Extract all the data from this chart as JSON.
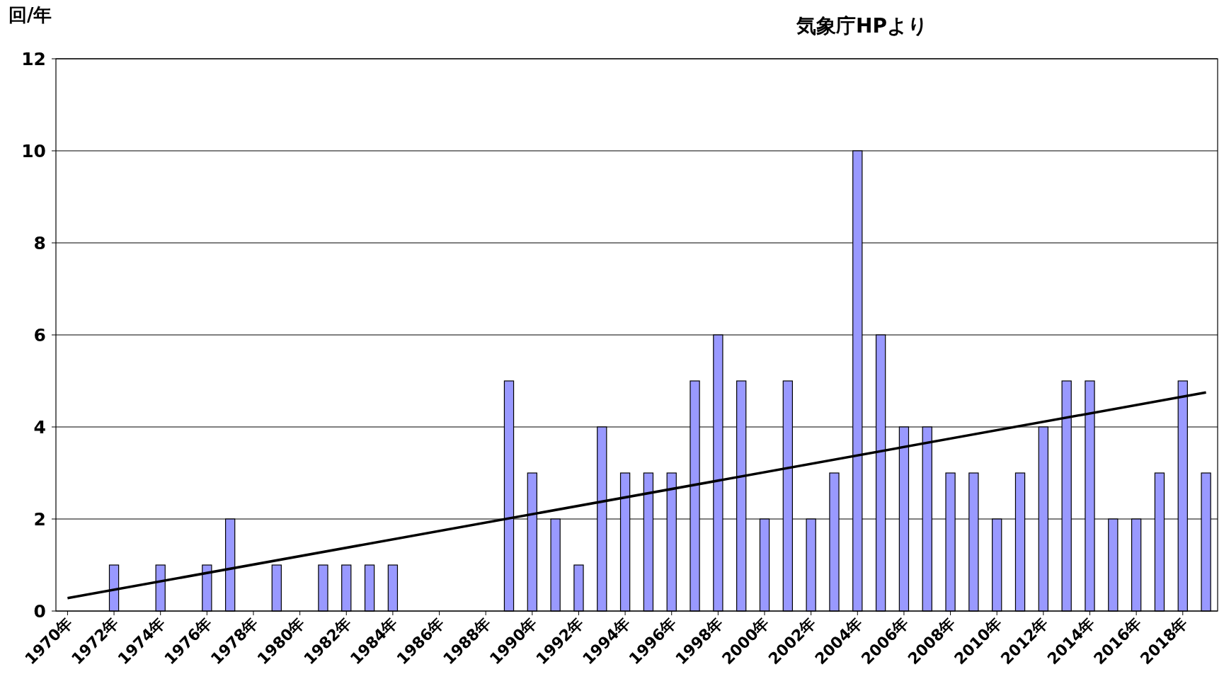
{
  "chart_data": {
    "type": "bar",
    "ylabel": "回/年",
    "annotations": [
      "気象庁HPより"
    ],
    "x": [
      1970,
      1971,
      1972,
      1973,
      1974,
      1975,
      1976,
      1977,
      1978,
      1979,
      1980,
      1981,
      1982,
      1983,
      1984,
      1985,
      1986,
      1987,
      1988,
      1989,
      1990,
      1991,
      1992,
      1993,
      1994,
      1995,
      1996,
      1997,
      1998,
      1999,
      2000,
      2001,
      2002,
      2003,
      2004,
      2005,
      2006,
      2007,
      2008,
      2009,
      2010,
      2011,
      2012,
      2013,
      2014,
      2015,
      2016,
      2017,
      2018,
      2019
    ],
    "series": [
      {
        "color": "#9999ff",
        "values": [
          0,
          0,
          1,
          0,
          1,
          0,
          1,
          2,
          0,
          1,
          0,
          1,
          1,
          1,
          1,
          0,
          0,
          0,
          0,
          5,
          3,
          2,
          1,
          4,
          3,
          3,
          3,
          5,
          6,
          5,
          2,
          5,
          2,
          3,
          10,
          6,
          4,
          4,
          3,
          3,
          2,
          3,
          4,
          5,
          5,
          2,
          2,
          3,
          5,
          3
        ]
      },
      {
        "type": "line",
        "color": "#000000",
        "x": [
          1970,
          2019
        ],
        "values": [
          0.28,
          4.75
        ]
      }
    ],
    "xlim": [
      1969.5,
      2019.5
    ],
    "xticks": [
      {
        "value": 1970,
        "label": "1970年"
      },
      {
        "value": 1972,
        "label": "1972年"
      },
      {
        "value": 1974,
        "label": "1974年"
      },
      {
        "value": 1976,
        "label": "1976年"
      },
      {
        "value": 1978,
        "label": "1978年"
      },
      {
        "value": 1980,
        "label": "1980年"
      },
      {
        "value": 1982,
        "label": "1982年"
      },
      {
        "value": 1984,
        "label": "1984年"
      },
      {
        "value": 1986,
        "label": "1986年"
      },
      {
        "value": 1988,
        "label": "1988年"
      },
      {
        "value": 1990,
        "label": "1990年"
      },
      {
        "value": 1992,
        "label": "1992年"
      },
      {
        "value": 1994,
        "label": "1994年"
      },
      {
        "value": 1996,
        "label": "1996年"
      },
      {
        "value": 1998,
        "label": "1998年"
      },
      {
        "value": 2000,
        "label": "2000年"
      },
      {
        "value": 2002,
        "label": "2002年"
      },
      {
        "value": 2004,
        "label": "2004年"
      },
      {
        "value": 2006,
        "label": "2006年"
      },
      {
        "value": 2008,
        "label": "2008年"
      },
      {
        "value": 2010,
        "label": "2010年"
      },
      {
        "value": 2012,
        "label": "2012年"
      },
      {
        "value": 2014,
        "label": "2014年"
      },
      {
        "value": 2016,
        "label": "2016年"
      },
      {
        "value": 2018,
        "label": "2018年"
      }
    ],
    "ylim": [
      0,
      12
    ],
    "yticks": [
      0,
      2,
      4,
      6,
      8,
      10,
      12
    ],
    "grid": "y"
  }
}
